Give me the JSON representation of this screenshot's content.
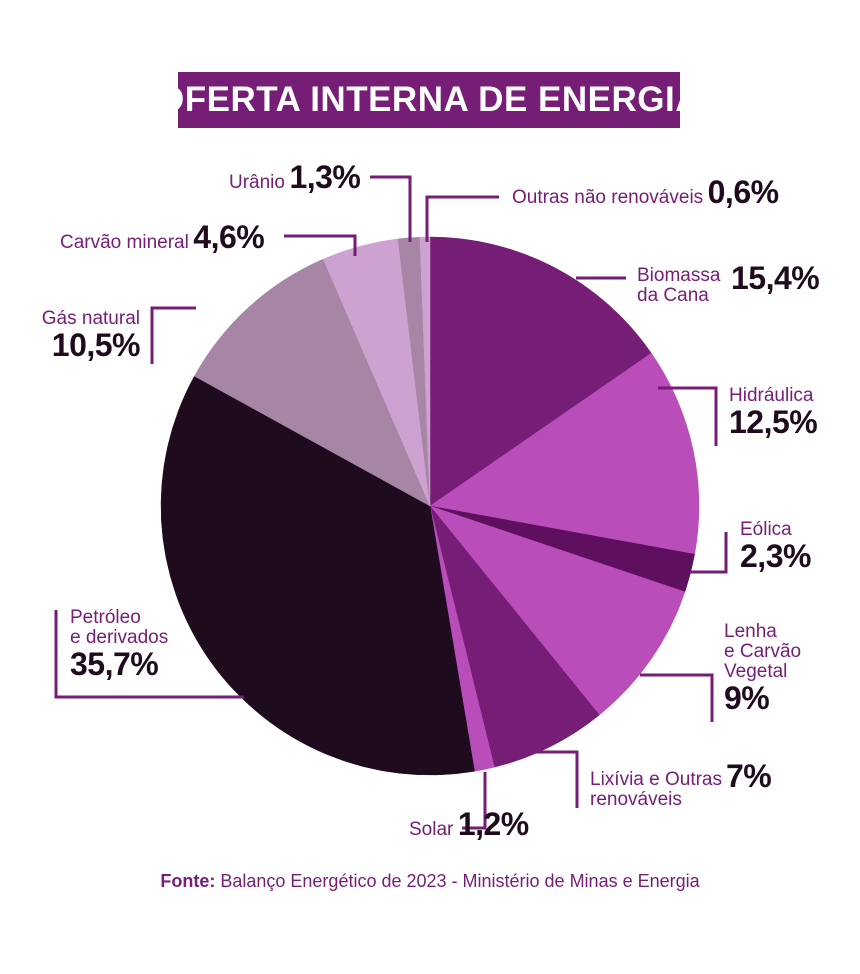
{
  "title": "OFERTA INTERNA DE ENERGIA",
  "source": {
    "prefix": "Fonte:",
    "text": "Balanço Energético de 2023 - Ministério de Minas e Energia"
  },
  "chart_data": {
    "type": "pie",
    "title": "OFERTA INTERNA DE ENERGIA",
    "slices": [
      {
        "name": "Biomassa da Cana",
        "value": 15.4,
        "label": "15,4%",
        "color": "#761d76"
      },
      {
        "name": "Hidráulica",
        "value": 12.5,
        "label": "12,5%",
        "color": "#b94dba"
      },
      {
        "name": "Eólica",
        "value": 2.3,
        "label": "2,3%",
        "color": "#5e0f5e"
      },
      {
        "name": "Lenha e Carvão Vegetal",
        "value": 9,
        "label": "9%",
        "color": "#b94dba"
      },
      {
        "name": "Lixívia e Outras renováveis",
        "value": 7,
        "label": "7%",
        "color": "#761d76"
      },
      {
        "name": "Solar",
        "value": 1.2,
        "label": "1,2%",
        "color": "#b94dba"
      },
      {
        "name": "Petróleo e derivados",
        "value": 35.7,
        "label": "35,7%",
        "color": "#1e0c1e"
      },
      {
        "name": "Gás natural",
        "value": 10.5,
        "label": "10,5%",
        "color": "#a685a5"
      },
      {
        "name": "Carvão mineral",
        "value": 4.6,
        "label": "4,6%",
        "color": "#cda2d0"
      },
      {
        "name": "Urânio",
        "value": 1.3,
        "label": "1,3%",
        "color": "#a685a5"
      },
      {
        "name": "Outras não renováveis",
        "value": 0.6,
        "label": "0,6%",
        "color": "#cda2d0"
      }
    ]
  },
  "labels": {
    "biomassa": {
      "line1": "Biomassa",
      "line2": "da Cana",
      "value": "15,4%"
    },
    "hidraulica": {
      "name": "Hidráulica",
      "value": "12,5%"
    },
    "eolica": {
      "name": "Eólica",
      "value": "2,3%"
    },
    "lenha": {
      "line1": "Lenha",
      "line2": "e Carvão",
      "line3": "Vegetal",
      "value": "9%"
    },
    "lixivia": {
      "line1": "Lixívia e Outras",
      "line2": "renováveis",
      "value": "7%"
    },
    "solar": {
      "name": "Solar",
      "value": "1,2%"
    },
    "petroleo": {
      "line1": "Petróleo",
      "line2": "e derivados",
      "value": "35,7%"
    },
    "gas": {
      "name": "Gás natural",
      "value": "10,5%"
    },
    "carvao": {
      "name": "Carvão mineral",
      "value": "4,6%"
    },
    "uranio": {
      "name": "Urânio",
      "value": "1,3%"
    },
    "outras": {
      "name": "Outras não renováveis",
      "value": "0,6%"
    }
  }
}
